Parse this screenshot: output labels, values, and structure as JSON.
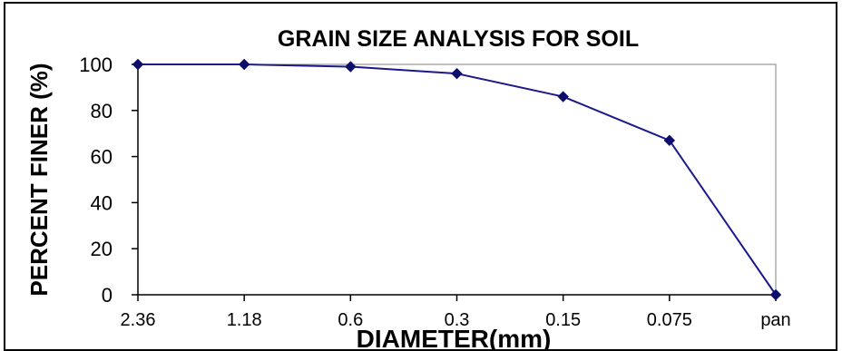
{
  "chart_data": {
    "type": "line",
    "title": "GRAIN SIZE ANALYSIS FOR SOIL",
    "xlabel": "DIAMETER(mm)",
    "ylabel": "PERCENT FINER (%)",
    "categories": [
      "2.36",
      "1.18",
      "0.6",
      "0.3",
      "0.15",
      "0.075",
      "pan"
    ],
    "series": [
      {
        "values": [
          100,
          100,
          99,
          96,
          86,
          67,
          0
        ]
      }
    ],
    "yticks": [
      "100",
      "80",
      "60",
      "40",
      "20",
      "0"
    ],
    "ylim": [
      0,
      100
    ],
    "grid": false,
    "legend": "none",
    "line_color": "#1a1a8c",
    "marker_color": "#0d0d6b",
    "marker": "diamond"
  }
}
